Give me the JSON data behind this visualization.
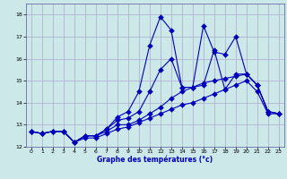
{
  "title": "Graphe des températures (°c)",
  "bg_color": "#cce8e8",
  "grid_color": "#aaaacc",
  "line_color": "#0000bb",
  "xlim": [
    -0.5,
    23.5
  ],
  "ylim": [
    12,
    18.5
  ],
  "xticks": [
    0,
    1,
    2,
    3,
    4,
    5,
    6,
    7,
    8,
    9,
    10,
    11,
    12,
    13,
    14,
    15,
    16,
    17,
    18,
    19,
    20,
    21,
    22,
    23
  ],
  "yticks": [
    12,
    13,
    14,
    15,
    16,
    17,
    18
  ],
  "line1_x": [
    0,
    1,
    2,
    3,
    4,
    5,
    6,
    7,
    8,
    9,
    10,
    11,
    12,
    13,
    14,
    15,
    16,
    17,
    18,
    19,
    20,
    21,
    22,
    23
  ],
  "line1_y": [
    12.7,
    12.6,
    12.7,
    12.7,
    12.2,
    12.5,
    12.5,
    12.8,
    13.35,
    13.6,
    14.5,
    16.6,
    17.9,
    17.3,
    14.7,
    14.7,
    17.5,
    16.3,
    16.2,
    17.0,
    15.3,
    14.8,
    13.6,
    13.5
  ],
  "line2_x": [
    0,
    1,
    2,
    3,
    4,
    5,
    6,
    7,
    8,
    9,
    10,
    11,
    12,
    13,
    14,
    15,
    16,
    17,
    18,
    19,
    20,
    21,
    22,
    23
  ],
  "line2_y": [
    12.7,
    12.6,
    12.7,
    12.7,
    12.2,
    12.5,
    12.5,
    12.8,
    13.2,
    13.3,
    13.6,
    14.5,
    15.5,
    16.0,
    14.7,
    14.7,
    14.8,
    16.4,
    14.6,
    15.3,
    15.3,
    14.8,
    13.6,
    13.5
  ],
  "line3_x": [
    0,
    1,
    2,
    3,
    4,
    5,
    6,
    7,
    8,
    9,
    10,
    11,
    12,
    13,
    14,
    15,
    16,
    17,
    18,
    19,
    20,
    21,
    22,
    23
  ],
  "line3_y": [
    12.7,
    12.6,
    12.7,
    12.7,
    12.2,
    12.5,
    12.5,
    12.7,
    13.0,
    13.0,
    13.2,
    13.5,
    13.8,
    14.2,
    14.5,
    14.7,
    14.9,
    15.0,
    15.1,
    15.2,
    15.3,
    14.8,
    13.6,
    13.5
  ],
  "line4_x": [
    0,
    1,
    2,
    3,
    4,
    5,
    6,
    7,
    8,
    9,
    10,
    11,
    12,
    13,
    14,
    15,
    16,
    17,
    18,
    19,
    20,
    21,
    22,
    23
  ],
  "line4_y": [
    12.7,
    12.6,
    12.7,
    12.7,
    12.2,
    12.4,
    12.4,
    12.6,
    12.8,
    12.9,
    13.1,
    13.3,
    13.5,
    13.7,
    13.9,
    14.0,
    14.2,
    14.4,
    14.6,
    14.8,
    15.0,
    14.5,
    13.5,
    13.5
  ]
}
